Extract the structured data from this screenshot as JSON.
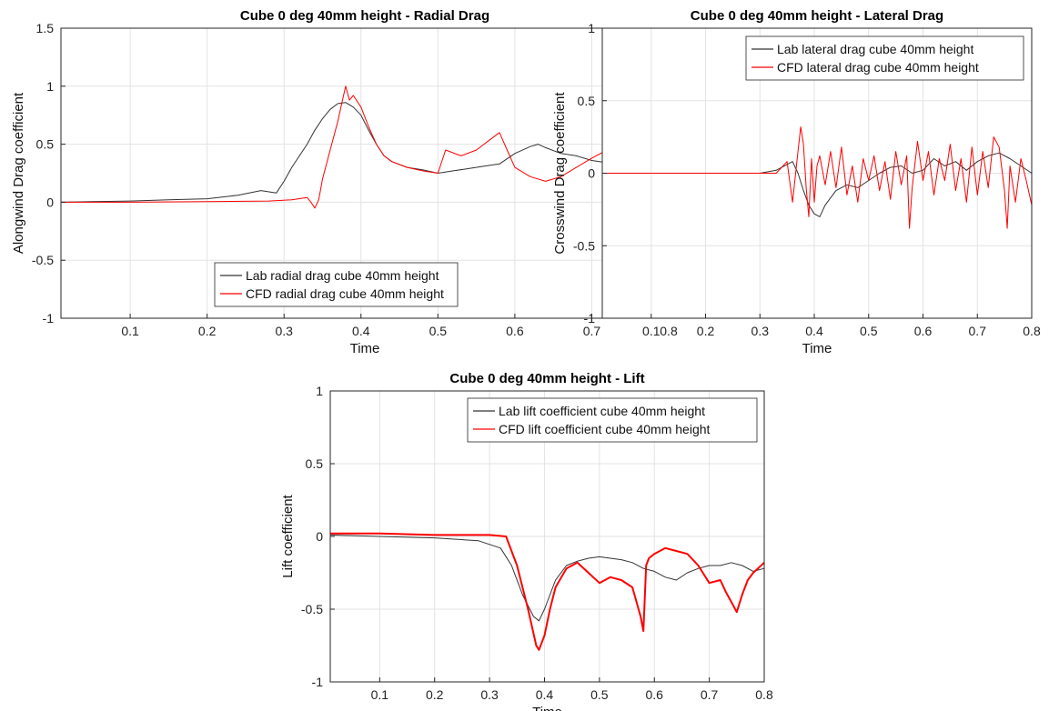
{
  "chart_data": [
    {
      "type": "line",
      "title": "Cube 0 deg 40mm height - Radial Drag",
      "xlabel": "Time",
      "ylabel": "Alongwind Drag coefficient",
      "xlim": [
        0.01,
        0.8
      ],
      "ylim": [
        -1,
        1.5
      ],
      "xticks": [
        0.1,
        0.2,
        0.3,
        0.4,
        0.5,
        0.6,
        0.7,
        0.8
      ],
      "xtick_labels": [
        "0.1",
        "0.2",
        "0.3",
        "0.4",
        "0.5",
        "0.6",
        "0.7",
        "0.8"
      ],
      "yticks": [
        -1,
        -0.5,
        0,
        0.5,
        1,
        1.5
      ],
      "ytick_labels": [
        "-1",
        "-0.5",
        "0",
        "0.5",
        "1",
        "1.5"
      ],
      "grid": true,
      "legend_position": "bottom-right",
      "series": [
        {
          "name": "Lab radial drag cube 40mm height",
          "color": "#333333",
          "x": [
            0.01,
            0.05,
            0.1,
            0.15,
            0.2,
            0.24,
            0.27,
            0.29,
            0.3,
            0.31,
            0.32,
            0.33,
            0.34,
            0.35,
            0.36,
            0.37,
            0.38,
            0.39,
            0.4,
            0.41,
            0.42,
            0.43,
            0.44,
            0.46,
            0.48,
            0.5,
            0.52,
            0.54,
            0.56,
            0.58,
            0.6,
            0.62,
            0.63,
            0.64,
            0.66,
            0.68,
            0.7,
            0.72,
            0.74,
            0.76,
            0.78,
            0.8
          ],
          "y": [
            0.0,
            0.005,
            0.01,
            0.02,
            0.03,
            0.06,
            0.1,
            0.08,
            0.18,
            0.3,
            0.4,
            0.5,
            0.62,
            0.72,
            0.8,
            0.85,
            0.86,
            0.82,
            0.75,
            0.62,
            0.5,
            0.4,
            0.35,
            0.3,
            0.28,
            0.25,
            0.27,
            0.29,
            0.31,
            0.33,
            0.42,
            0.48,
            0.5,
            0.47,
            0.42,
            0.4,
            0.36,
            0.34,
            0.37,
            0.38,
            0.35,
            0.32
          ]
        },
        {
          "name": "CFD radial drag cube 40mm height",
          "color": "#ff0000",
          "x": [
            0.01,
            0.1,
            0.2,
            0.28,
            0.31,
            0.33,
            0.335,
            0.34,
            0.345,
            0.35,
            0.36,
            0.37,
            0.375,
            0.38,
            0.385,
            0.39,
            0.4,
            0.41,
            0.42,
            0.43,
            0.44,
            0.46,
            0.48,
            0.5,
            0.51,
            0.53,
            0.55,
            0.57,
            0.58,
            0.59,
            0.6,
            0.62,
            0.64,
            0.66,
            0.68,
            0.7,
            0.72,
            0.74,
            0.75,
            0.76,
            0.78,
            0.79,
            0.8
          ],
          "y": [
            0.0,
            0.0,
            0.005,
            0.01,
            0.02,
            0.04,
            0.0,
            -0.05,
            0.02,
            0.2,
            0.45,
            0.7,
            0.85,
            1.0,
            0.88,
            0.92,
            0.82,
            0.65,
            0.5,
            0.4,
            0.35,
            0.3,
            0.27,
            0.25,
            0.45,
            0.4,
            0.45,
            0.55,
            0.6,
            0.45,
            0.3,
            0.22,
            0.18,
            0.22,
            0.3,
            0.38,
            0.45,
            0.55,
            0.62,
            0.55,
            0.4,
            0.3,
            0.22
          ]
        }
      ]
    },
    {
      "type": "line",
      "title": "Cube 0 deg 40mm height - Lateral Drag",
      "xlabel": "Time",
      "ylabel": "Crosswind Drag coefficient",
      "xlim": [
        0.01,
        0.8
      ],
      "ylim": [
        -1,
        1
      ],
      "xticks": [
        0.1,
        0.2,
        0.3,
        0.4,
        0.5,
        0.6,
        0.7,
        0.8
      ],
      "xtick_labels": [
        "0.1",
        "0.2",
        "0.3",
        "0.4",
        "0.5",
        "0.6",
        "0.7",
        "0.8"
      ],
      "yticks": [
        -1,
        -0.5,
        0,
        0.5,
        1
      ],
      "ytick_labels": [
        "-1",
        "-0.5",
        "0",
        "0.5",
        "1"
      ],
      "grid": true,
      "legend_position": "top-right",
      "series": [
        {
          "name": "Lab lateral drag cube 40mm height",
          "color": "#333333",
          "x": [
            0.01,
            0.1,
            0.2,
            0.3,
            0.33,
            0.35,
            0.36,
            0.37,
            0.38,
            0.39,
            0.4,
            0.41,
            0.42,
            0.44,
            0.46,
            0.48,
            0.5,
            0.52,
            0.54,
            0.56,
            0.58,
            0.6,
            0.62,
            0.64,
            0.66,
            0.68,
            0.7,
            0.72,
            0.74,
            0.76,
            0.78,
            0.8
          ],
          "y": [
            0.0,
            0.0,
            0.0,
            0.0,
            0.02,
            0.06,
            0.08,
            0.0,
            -0.12,
            -0.22,
            -0.28,
            -0.3,
            -0.22,
            -0.12,
            -0.08,
            -0.1,
            -0.05,
            0.0,
            0.04,
            0.05,
            0.0,
            0.02,
            0.1,
            0.05,
            0.08,
            0.02,
            0.08,
            0.12,
            0.14,
            0.1,
            0.05,
            0.0
          ]
        },
        {
          "name": "CFD lateral drag cube 40mm height",
          "color": "#ff0000",
          "x": [
            0.01,
            0.1,
            0.2,
            0.3,
            0.33,
            0.35,
            0.36,
            0.37,
            0.375,
            0.38,
            0.385,
            0.39,
            0.395,
            0.4,
            0.405,
            0.41,
            0.42,
            0.43,
            0.44,
            0.45,
            0.46,
            0.47,
            0.48,
            0.49,
            0.5,
            0.51,
            0.52,
            0.53,
            0.54,
            0.55,
            0.56,
            0.57,
            0.575,
            0.58,
            0.59,
            0.6,
            0.61,
            0.62,
            0.63,
            0.64,
            0.65,
            0.66,
            0.67,
            0.68,
            0.69,
            0.7,
            0.71,
            0.72,
            0.73,
            0.74,
            0.75,
            0.755,
            0.76,
            0.77,
            0.78,
            0.79,
            0.8
          ],
          "y": [
            0.0,
            0.0,
            0.0,
            0.0,
            0.0,
            0.08,
            -0.2,
            0.15,
            0.32,
            0.2,
            -0.1,
            -0.3,
            0.1,
            -0.2,
            0.05,
            0.12,
            -0.08,
            0.15,
            -0.1,
            0.18,
            -0.15,
            0.05,
            -0.2,
            0.1,
            -0.05,
            0.12,
            -0.12,
            0.08,
            -0.18,
            0.15,
            -0.08,
            0.12,
            -0.38,
            -0.1,
            0.22,
            -0.05,
            0.15,
            -0.15,
            0.1,
            -0.05,
            0.2,
            -0.12,
            0.1,
            -0.2,
            0.18,
            -0.15,
            0.15,
            -0.1,
            0.25,
            0.18,
            -0.12,
            -0.38,
            0.05,
            -0.2,
            0.1,
            -0.05,
            -0.22
          ]
        }
      ]
    },
    {
      "type": "line",
      "title": "Cube 0 deg 40mm height - Lift",
      "xlabel": "Time",
      "ylabel": "Lift coefficient",
      "xlim": [
        0.01,
        0.8
      ],
      "ylim": [
        -1,
        1
      ],
      "xticks": [
        0.1,
        0.2,
        0.3,
        0.4,
        0.5,
        0.6,
        0.7,
        0.8
      ],
      "xtick_labels": [
        "0.1",
        "0.2",
        "0.3",
        "0.4",
        "0.5",
        "0.6",
        "0.7",
        "0.8"
      ],
      "yticks": [
        -1,
        -0.5,
        0,
        0.5,
        1
      ],
      "ytick_labels": [
        "-1",
        "-0.5",
        "0",
        "0.5",
        "1"
      ],
      "grid": true,
      "legend_position": "top-right",
      "series": [
        {
          "name": "Lab lift coefficient cube 40mm height",
          "color": "#333333",
          "x": [
            0.01,
            0.1,
            0.2,
            0.28,
            0.32,
            0.34,
            0.36,
            0.38,
            0.39,
            0.4,
            0.42,
            0.44,
            0.46,
            0.48,
            0.5,
            0.52,
            0.54,
            0.56,
            0.58,
            0.6,
            0.62,
            0.64,
            0.66,
            0.68,
            0.7,
            0.72,
            0.74,
            0.76,
            0.78,
            0.8
          ],
          "y": [
            0.01,
            0.0,
            -0.01,
            -0.03,
            -0.08,
            -0.2,
            -0.4,
            -0.55,
            -0.58,
            -0.5,
            -0.3,
            -0.2,
            -0.17,
            -0.15,
            -0.14,
            -0.15,
            -0.16,
            -0.18,
            -0.22,
            -0.24,
            -0.28,
            -0.3,
            -0.25,
            -0.22,
            -0.2,
            -0.2,
            -0.18,
            -0.2,
            -0.24,
            -0.22
          ]
        },
        {
          "name": "CFD lift coefficient cube 40mm height",
          "color": "#ff0000",
          "x": [
            0.01,
            0.1,
            0.2,
            0.3,
            0.33,
            0.35,
            0.37,
            0.385,
            0.39,
            0.4,
            0.41,
            0.42,
            0.44,
            0.46,
            0.48,
            0.5,
            0.52,
            0.54,
            0.56,
            0.575,
            0.58,
            0.585,
            0.59,
            0.6,
            0.62,
            0.64,
            0.66,
            0.68,
            0.7,
            0.72,
            0.73,
            0.74,
            0.75,
            0.76,
            0.77,
            0.78,
            0.8
          ],
          "y": [
            0.02,
            0.02,
            0.01,
            0.01,
            0.0,
            -0.2,
            -0.5,
            -0.75,
            -0.78,
            -0.68,
            -0.5,
            -0.35,
            -0.22,
            -0.18,
            -0.25,
            -0.32,
            -0.28,
            -0.3,
            -0.35,
            -0.55,
            -0.65,
            -0.2,
            -0.15,
            -0.12,
            -0.08,
            -0.1,
            -0.12,
            -0.2,
            -0.32,
            -0.3,
            -0.38,
            -0.45,
            -0.52,
            -0.4,
            -0.3,
            -0.25,
            -0.18
          ]
        }
      ]
    }
  ]
}
